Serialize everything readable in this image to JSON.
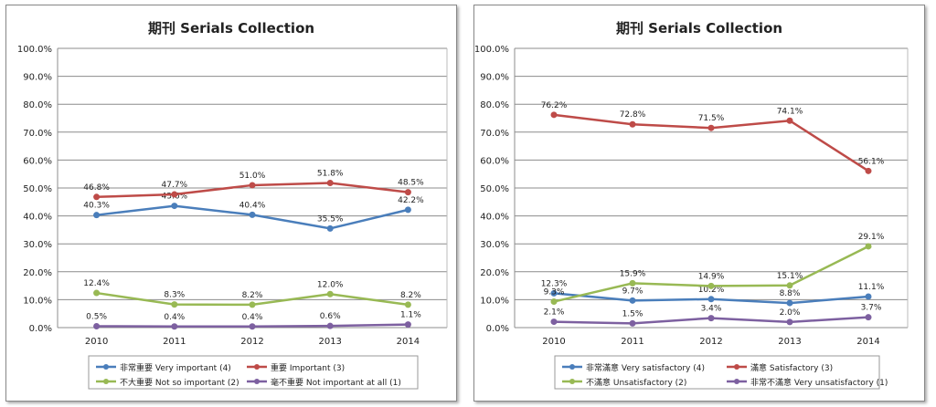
{
  "chart_data": [
    {
      "type": "line",
      "title": "期刊  Serials Collection",
      "categories": [
        "2010",
        "2011",
        "2012",
        "2013",
        "2014"
      ],
      "ylim": [
        0,
        100
      ],
      "yticks": [
        "0.0%",
        "10.0%",
        "20.0%",
        "30.0%",
        "40.0%",
        "50.0%",
        "60.0%",
        "70.0%",
        "80.0%",
        "90.0%",
        "100.0%"
      ],
      "legend": "bottom",
      "series": [
        {
          "name": "非常重要 Very important (4)",
          "color": "#4a7ebb",
          "values": [
            40.3,
            43.6,
            40.4,
            35.5,
            42.2
          ],
          "labels": [
            "40.3%",
            "43.6%",
            "40.4%",
            "35.5%",
            "42.2%"
          ]
        },
        {
          "name": "重要 Important (3)",
          "color": "#be4b48",
          "values": [
            46.8,
            47.7,
            51.0,
            51.8,
            48.5
          ],
          "labels": [
            "46.8%",
            "47.7%",
            "51.0%",
            "51.8%",
            "48.5%"
          ]
        },
        {
          "name": "不大重要 Not so important (2)",
          "color": "#98b954",
          "values": [
            12.4,
            8.3,
            8.2,
            12.0,
            8.2
          ],
          "labels": [
            "12.4%",
            "8.3%",
            "8.2%",
            "12.0%",
            "8.2%"
          ]
        },
        {
          "name": "毫不重要 Not important at all (1)",
          "color": "#7d60a0",
          "values": [
            0.5,
            0.4,
            0.4,
            0.6,
            1.1
          ],
          "labels": [
            "0.5%",
            "0.4%",
            "0.4%",
            "0.6%",
            "1.1%"
          ]
        }
      ]
    },
    {
      "type": "line",
      "title": "期刊  Serials Collection",
      "categories": [
        "2010",
        "2011",
        "2012",
        "2013",
        "2014"
      ],
      "ylim": [
        0,
        100
      ],
      "yticks": [
        "0.0%",
        "10.0%",
        "20.0%",
        "30.0%",
        "40.0%",
        "50.0%",
        "60.0%",
        "70.0%",
        "80.0%",
        "90.0%",
        "100.0%"
      ],
      "legend": "bottom",
      "series": [
        {
          "name": "非常滿意 Very satisfactory (4)",
          "color": "#4a7ebb",
          "values": [
            12.3,
            9.7,
            10.2,
            8.8,
            11.1
          ],
          "labels": [
            "12.3%",
            "9.7%",
            "10.2%",
            "8.8%",
            "11.1%"
          ]
        },
        {
          "name": "滿意 Satisfactory (3)",
          "color": "#be4b48",
          "values": [
            76.2,
            72.8,
            71.5,
            74.1,
            56.1
          ],
          "labels": [
            "76.2%",
            "72.8%",
            "71.5%",
            "74.1%",
            "56.1%"
          ]
        },
        {
          "name": "不滿意 Unsatisfactory (2)",
          "color": "#98b954",
          "values": [
            9.3,
            15.9,
            14.9,
            15.1,
            29.1
          ],
          "labels": [
            "9.3%",
            "15.9%",
            "14.9%",
            "15.1%",
            "29.1%"
          ]
        },
        {
          "name": "非常不滿意 Very unsatisfactory (1)",
          "color": "#7d60a0",
          "values": [
            2.1,
            1.5,
            3.4,
            2.0,
            3.7
          ],
          "labels": [
            "2.1%",
            "1.5%",
            "3.4%",
            "2.0%",
            "3.7%"
          ]
        }
      ]
    }
  ]
}
